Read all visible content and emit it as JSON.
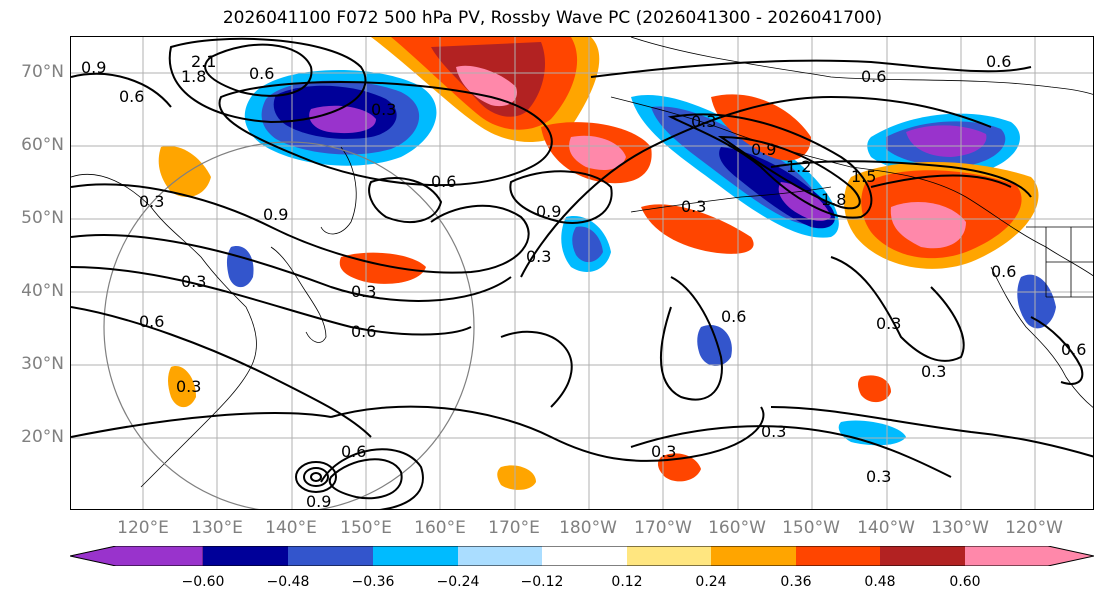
{
  "title": "2026041100 F072 500 hPa PV, Rossby Wave PC (2026041300 - 2026041700)",
  "lat_labels": [
    "70°N",
    "60°N",
    "50°N",
    "40°N",
    "30°N",
    "20°N"
  ],
  "lon_labels": [
    "120°E",
    "130°E",
    "140°E",
    "150°E",
    "160°E",
    "170°E",
    "180°W",
    "170°W",
    "160°W",
    "150°W",
    "140°W",
    "130°W",
    "120°W"
  ],
  "colorbar": {
    "ticks": [
      "−0.60",
      "−0.48",
      "−0.36",
      "−0.24",
      "−0.12",
      "0.12",
      "0.24",
      "0.36",
      "0.48",
      "0.60"
    ],
    "colors": [
      "#9933cc",
      "#000099",
      "#3355cc",
      "#00bbff",
      "#aaddff",
      "#ffffff",
      "#ffe680",
      "#ffa500",
      "#ff4500",
      "#b22222",
      "#ff88aa"
    ]
  },
  "contour_labels": [
    "0.9",
    "0.6",
    "1.8",
    "2.1",
    "0.6",
    "0.3",
    "0.3",
    "0.9",
    "0.6",
    "0.3",
    "0.6",
    "0.3",
    "0.9",
    "0.6",
    "0.3",
    "0.6",
    "0.6",
    "0.3",
    "0.6",
    "0.3",
    "0.9",
    "1.2",
    "1.5",
    "1.8",
    "0.6",
    "0.3",
    "0.3",
    "0.6",
    "0.3",
    "0.3",
    "0.6",
    "0.3",
    "0.3",
    "0.9"
  ]
}
